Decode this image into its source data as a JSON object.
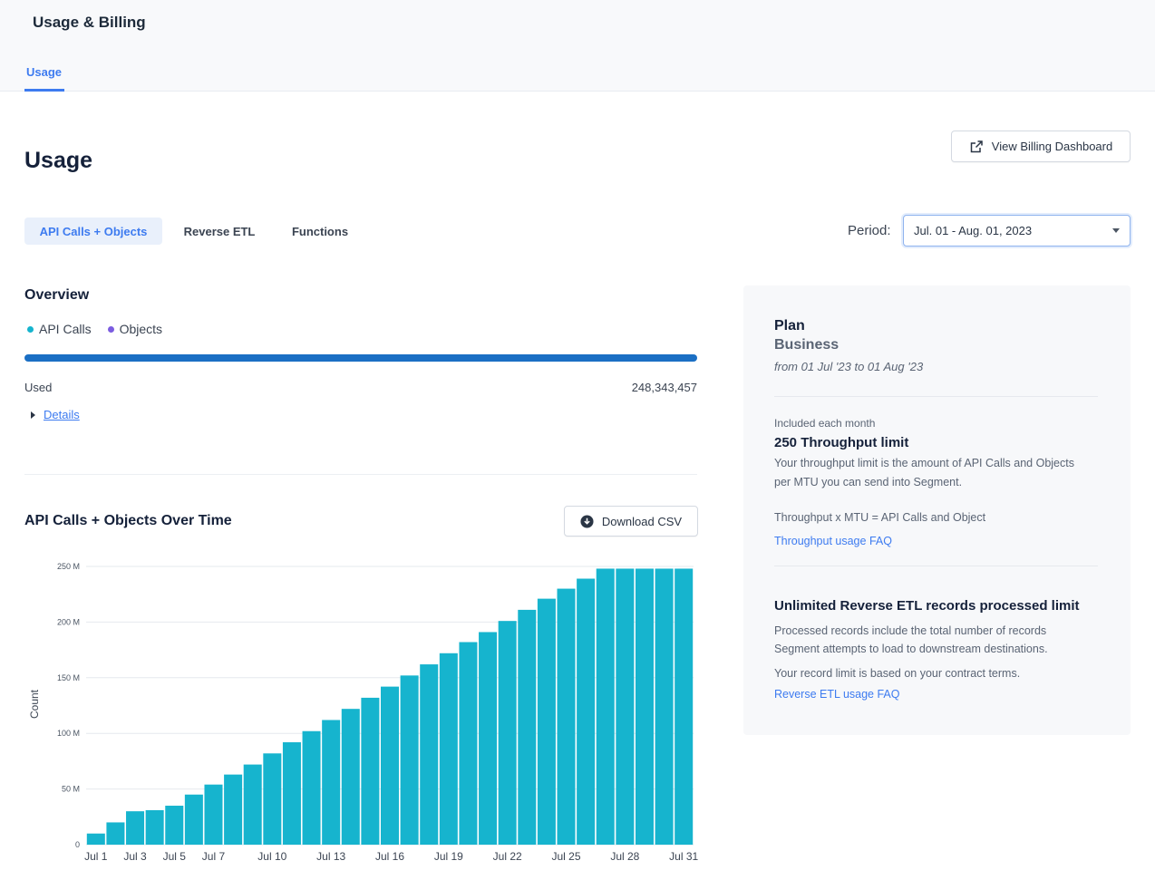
{
  "header": {
    "title": "Usage & Billing",
    "tabs": [
      {
        "label": "Usage"
      }
    ]
  },
  "page": {
    "title": "Usage",
    "billing_button": "View Billing Dashboard"
  },
  "usage_tabs": [
    {
      "label": "API Calls + Objects"
    },
    {
      "label": "Reverse ETL"
    },
    {
      "label": "Functions"
    }
  ],
  "period": {
    "label": "Period:",
    "value": "Jul. 01 - Aug. 01, 2023"
  },
  "overview": {
    "title": "Overview",
    "legend": [
      {
        "label": "API Calls",
        "color": "#16b4ce"
      },
      {
        "label": "Objects",
        "color": "#7b5ce0"
      }
    ],
    "used_label": "Used",
    "used_value": "248,343,457",
    "details_link": "Details"
  },
  "chart_section": {
    "title": "API Calls + Objects Over Time",
    "download_button": "Download CSV"
  },
  "chart_data": {
    "type": "bar",
    "ylabel": "Count",
    "ylim": [
      0,
      250000000
    ],
    "yticks": [
      {
        "value": 0,
        "label": "0"
      },
      {
        "value": 50000000,
        "label": "50 M"
      },
      {
        "value": 100000000,
        "label": "100 M"
      },
      {
        "value": 150000000,
        "label": "150 M"
      },
      {
        "value": 200000000,
        "label": "200 M"
      },
      {
        "value": 250000000,
        "label": "250 M"
      }
    ],
    "categories": [
      "Jul 1",
      "Jul 2",
      "Jul 3",
      "Jul 4",
      "Jul 5",
      "Jul 6",
      "Jul 7",
      "Jul 8",
      "Jul 9",
      "Jul 10",
      "Jul 11",
      "Jul 12",
      "Jul 13",
      "Jul 14",
      "Jul 15",
      "Jul 16",
      "Jul 17",
      "Jul 18",
      "Jul 19",
      "Jul 20",
      "Jul 21",
      "Jul 22",
      "Jul 23",
      "Jul 24",
      "Jul 25",
      "Jul 26",
      "Jul 27",
      "Jul 28",
      "Jul 29",
      "Jul 30",
      "Jul 31"
    ],
    "xtick_labels": [
      "Jul 1",
      "Jul 3",
      "Jul 5",
      "Jul 7",
      "Jul 10",
      "Jul 13",
      "Jul 16",
      "Jul 19",
      "Jul 22",
      "Jul 25",
      "Jul 28",
      "Jul 31"
    ],
    "values": [
      10000000,
      20000000,
      30000000,
      31000000,
      35000000,
      45000000,
      54000000,
      63000000,
      72000000,
      82000000,
      92000000,
      102000000,
      112000000,
      122000000,
      132000000,
      142000000,
      152000000,
      162000000,
      172000000,
      182000000,
      191000000,
      201000000,
      211000000,
      221000000,
      230000000,
      239000000,
      248000000,
      248000000,
      248000000,
      248000000,
      248000000
    ],
    "color": "#16b4ce"
  },
  "plan": {
    "title": "Plan",
    "name": "Business",
    "range": "from 01 Jul '23 to 01 Aug '23",
    "included_label": "Included each month",
    "throughput_title": "250 Throughput limit",
    "throughput_desc": "Your throughput limit is the amount of API Calls and Objects per MTU you can send into Segment.",
    "throughput_formula": "Throughput x MTU = API Calls and Object",
    "throughput_faq": "Throughput usage FAQ",
    "retl_title": "Unlimited Reverse ETL records processed limit",
    "retl_desc": "Processed records include the total number of records Segment attempts to load to downstream destinations.",
    "retl_limit": "Your record limit is based on your contract terms.",
    "retl_faq": "Reverse ETL usage FAQ"
  }
}
